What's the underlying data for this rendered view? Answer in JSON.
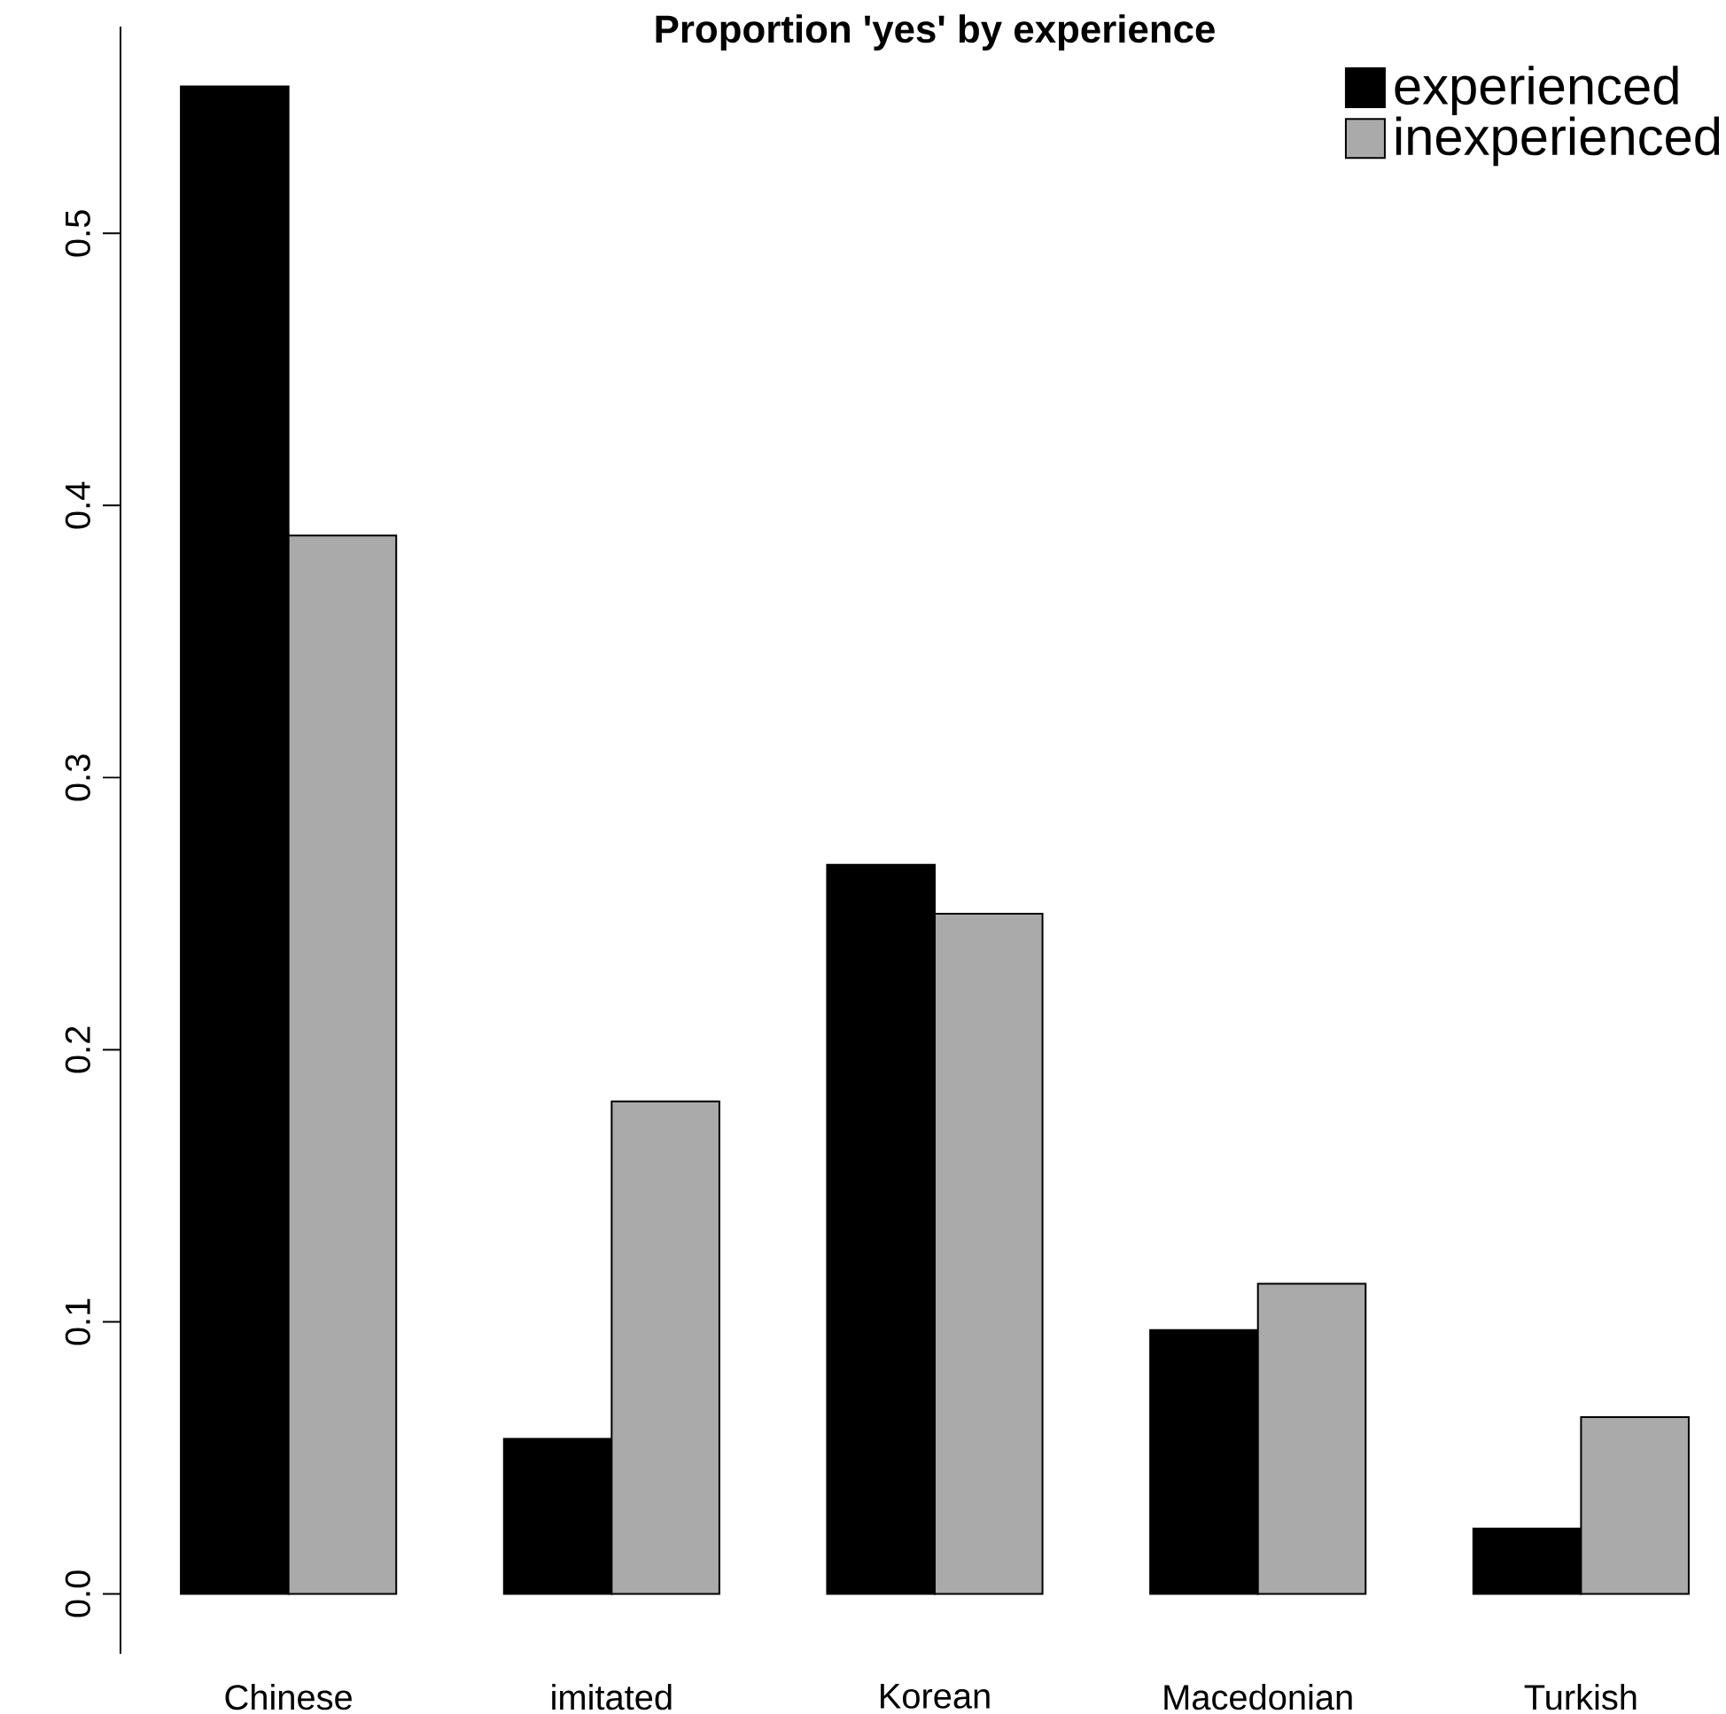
{
  "chart_data": {
    "type": "bar",
    "title": "Proportion 'yes' by experience",
    "categories": [
      "Chinese",
      "imitated",
      "Korean",
      "Macedonian",
      "Turkish"
    ],
    "series": [
      {
        "name": "experienced",
        "color": "#000000",
        "values": [
          0.554,
          0.057,
          0.268,
          0.097,
          0.024
        ]
      },
      {
        "name": "inexperienced",
        "color": "#aaaaaa",
        "values": [
          0.389,
          0.181,
          0.25,
          0.114,
          0.065
        ]
      }
    ],
    "ylim": [
      -0.022,
      0.576
    ],
    "yticks": [
      {
        "value": 0,
        "label": "0.0"
      },
      0.1,
      0.2,
      0.3,
      0.4,
      0.5
    ],
    "grid": false,
    "legend": "top right"
  }
}
